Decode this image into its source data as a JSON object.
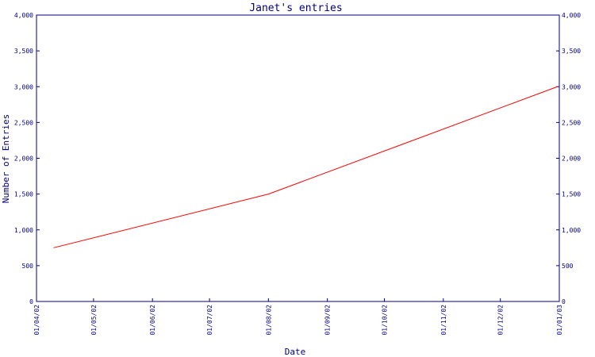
{
  "chart_data": {
    "type": "line",
    "title": "Janet's entries",
    "xlabel": "Date",
    "ylabel": "Number of Entries",
    "x_ticks": [
      "01/04/02",
      "01/05/02",
      "01/06/02",
      "01/07/02",
      "01/08/02",
      "01/09/02",
      "01/10/02",
      "01/11/02",
      "01/12/02",
      "01/01/03"
    ],
    "ylim": [
      0,
      4000
    ],
    "y_ticks": [
      "0",
      "500",
      "1,000",
      "1,500",
      "2,000",
      "2,500",
      "3,000",
      "3,500",
      "4,000"
    ],
    "y_tick_values": [
      0,
      500,
      1000,
      1500,
      2000,
      2500,
      3000,
      3500,
      4000
    ],
    "grid": false,
    "series": [
      {
        "color": "#ff0000",
        "points": [
          {
            "x": "2002-04-10",
            "y": 750
          },
          {
            "x": "2002-08-01",
            "y": 1500
          },
          {
            "x": "2002-12-31",
            "y": 3000
          }
        ]
      }
    ],
    "colors": {
      "axes": "#000080",
      "line": "#ff0000"
    }
  }
}
